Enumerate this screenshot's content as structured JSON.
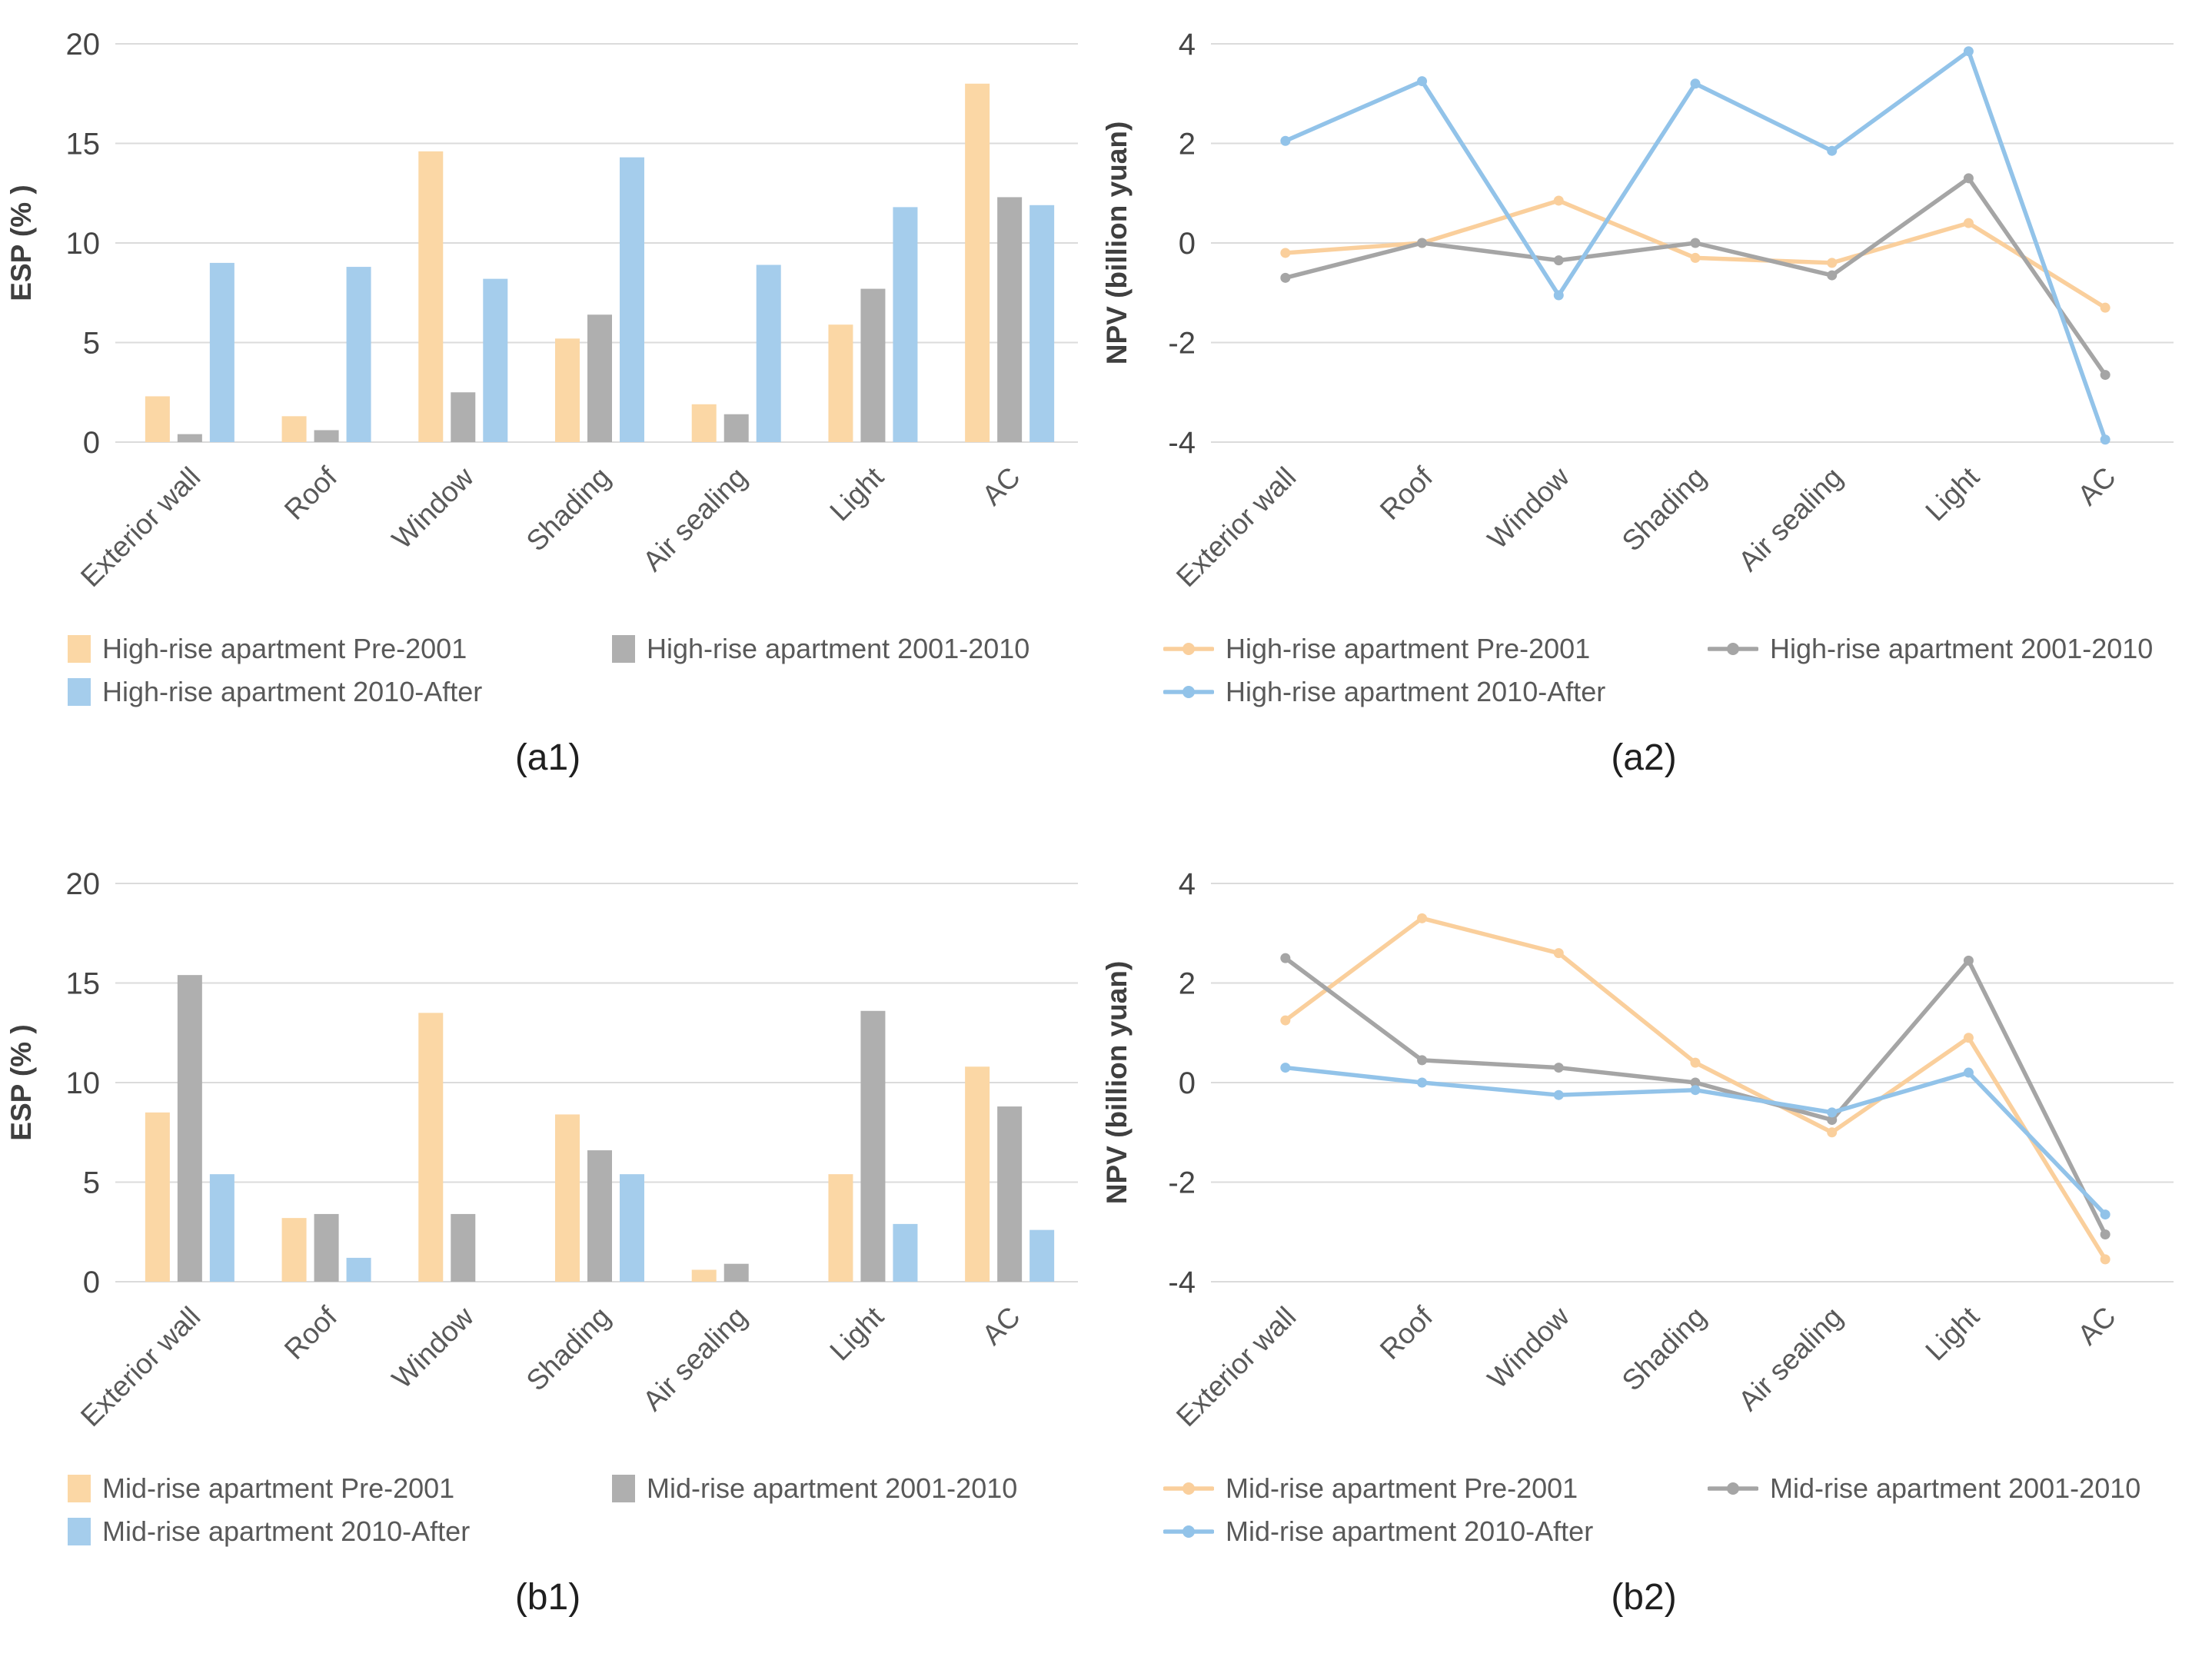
{
  "figure": {
    "categories": [
      "Exterior wall",
      "Roof",
      "Window",
      "Shading",
      "Air sealing",
      "Light",
      "AC"
    ],
    "styles": {
      "background": "#FFFFFF",
      "grid_color": "#DBDBDB",
      "tick_label_color": "#454545",
      "axis_title_color": "#3F3F3F",
      "category_label_color": "#595959",
      "legend_text_color": "#595959",
      "caption_color": "#1F1F1F",
      "orange_bar": "#FBD7A5",
      "gray_bar": "#AFAFAF",
      "blue_bar": "#A5CDEC",
      "orange_line": "#FACF9C",
      "gray_line": "#A5A5A5",
      "blue_line": "#92C3E9"
    },
    "panels": [
      {
        "id": "a1",
        "caption": "(a1)",
        "type": "bar",
        "y_label": "ESP (% )",
        "y_min": 0,
        "y_max": 20,
        "y_ticks": [
          0,
          5,
          10,
          15,
          20
        ],
        "series": [
          {
            "label": "High-rise apartment Pre-2001",
            "color": "#FBD7A5",
            "values": [
              2.3,
              1.3,
              14.6,
              5.2,
              1.9,
              5.9,
              18.0
            ]
          },
          {
            "label": "High-rise apartment 2001-2010",
            "color": "#AFAFAF",
            "values": [
              0.4,
              0.6,
              2.5,
              6.4,
              1.4,
              7.7,
              12.3
            ]
          },
          {
            "label": "High-rise apartment 2010-After",
            "color": "#A5CDEC",
            "values": [
              9.0,
              8.8,
              8.2,
              14.3,
              8.9,
              11.8,
              11.9
            ]
          }
        ]
      },
      {
        "id": "a2",
        "caption": "(a2)",
        "type": "line",
        "y_label": "NPV (billion yuan)",
        "y_min": -4,
        "y_max": 4,
        "y_ticks": [
          -4,
          -2,
          0,
          2,
          4
        ],
        "series": [
          {
            "label": "High-rise apartment Pre-2001",
            "color": "#FACF9C",
            "values": [
              -0.2,
              0.0,
              0.85,
              -0.3,
              -0.4,
              0.4,
              -1.3
            ]
          },
          {
            "label": "High-rise apartment 2001-2010",
            "color": "#A5A5A5",
            "values": [
              -0.7,
              0.0,
              -0.35,
              0.0,
              -0.65,
              1.3,
              -2.65
            ]
          },
          {
            "label": "High-rise apartment 2010-After",
            "color": "#92C3E9",
            "values": [
              2.05,
              3.25,
              -1.05,
              3.2,
              1.85,
              3.85,
              -3.95
            ]
          }
        ]
      },
      {
        "id": "b1",
        "caption": "(b1)",
        "type": "bar",
        "y_label": "ESP (% )",
        "y_min": 0,
        "y_max": 20,
        "y_ticks": [
          0,
          5,
          10,
          15,
          20
        ],
        "series": [
          {
            "label": "Mid-rise apartment Pre-2001",
            "color": "#FBD7A5",
            "values": [
              8.5,
              3.2,
              13.5,
              8.4,
              0.6,
              5.4,
              10.8
            ]
          },
          {
            "label": "Mid-rise apartment 2001-2010",
            "color": "#AFAFAF",
            "values": [
              15.4,
              3.4,
              3.4,
              6.6,
              0.9,
              13.6,
              8.8
            ]
          },
          {
            "label": "Mid-rise apartment 2010-After",
            "color": "#A5CDEC",
            "values": [
              5.4,
              1.2,
              0,
              5.4,
              0,
              2.9,
              2.6
            ]
          }
        ]
      },
      {
        "id": "b2",
        "caption": "(b2)",
        "type": "line",
        "y_label": "NPV (billion yuan)",
        "y_min": -4,
        "y_max": 4,
        "y_ticks": [
          -4,
          -2,
          0,
          2,
          4
        ],
        "series": [
          {
            "label": "Mid-rise apartment Pre-2001",
            "color": "#FACF9C",
            "values": [
              1.25,
              3.3,
              2.6,
              0.4,
              -1.0,
              0.9,
              -3.55
            ]
          },
          {
            "label": "Mid-rise apartment 2001-2010",
            "color": "#A5A5A5",
            "values": [
              2.5,
              0.45,
              0.3,
              0.0,
              -0.75,
              2.45,
              -3.05
            ]
          },
          {
            "label": "Mid-rise apartment 2010-After",
            "color": "#92C3E9",
            "values": [
              0.3,
              0.0,
              -0.25,
              -0.15,
              -0.6,
              0.2,
              -2.65
            ]
          }
        ]
      }
    ],
    "chart_data": [
      {
        "type": "bar",
        "title": "(a1)",
        "categories": [
          "Exterior wall",
          "Roof",
          "Window",
          "Shading",
          "Air sealing",
          "Light",
          "AC"
        ],
        "series": [
          {
            "name": "High-rise apartment Pre-2001",
            "values": [
              2.3,
              1.3,
              14.6,
              5.2,
              1.9,
              5.9,
              18.0
            ]
          },
          {
            "name": "High-rise apartment 2001-2010",
            "values": [
              0.4,
              0.6,
              2.5,
              6.4,
              1.4,
              7.7,
              12.3
            ]
          },
          {
            "name": "High-rise apartment 2010-After",
            "values": [
              9.0,
              8.8,
              8.2,
              14.3,
              8.9,
              11.8,
              11.9
            ]
          }
        ],
        "xlabel": "",
        "ylabel": "ESP (% )",
        "ylim": [
          0,
          20
        ],
        "grid": "horizontal",
        "legend_position": "bottom"
      },
      {
        "type": "line",
        "title": "(a2)",
        "categories": [
          "Exterior wall",
          "Roof",
          "Window",
          "Shading",
          "Air sealing",
          "Light",
          "AC"
        ],
        "series": [
          {
            "name": "High-rise apartment Pre-2001",
            "values": [
              -0.2,
              0.0,
              0.85,
              -0.3,
              -0.4,
              0.4,
              -1.3
            ]
          },
          {
            "name": "High-rise apartment 2001-2010",
            "values": [
              -0.7,
              0.0,
              -0.35,
              0.0,
              -0.65,
              1.3,
              -2.65
            ]
          },
          {
            "name": "High-rise apartment 2010-After",
            "values": [
              2.05,
              3.25,
              -1.05,
              3.2,
              1.85,
              3.85,
              -3.95
            ]
          }
        ],
        "xlabel": "",
        "ylabel": "NPV (billion yuan)",
        "ylim": [
          -4,
          4
        ],
        "grid": "horizontal",
        "legend_position": "bottom"
      },
      {
        "type": "bar",
        "title": "(b1)",
        "categories": [
          "Exterior wall",
          "Roof",
          "Window",
          "Shading",
          "Air sealing",
          "Light",
          "AC"
        ],
        "series": [
          {
            "name": "Mid-rise apartment Pre-2001",
            "values": [
              8.5,
              3.2,
              13.5,
              8.4,
              0.6,
              5.4,
              10.8
            ]
          },
          {
            "name": "Mid-rise apartment 2001-2010",
            "values": [
              15.4,
              3.4,
              3.4,
              6.6,
              0.9,
              13.6,
              8.8
            ]
          },
          {
            "name": "Mid-rise apartment 2010-After",
            "values": [
              5.4,
              1.2,
              0,
              5.4,
              0,
              2.9,
              2.6
            ]
          }
        ],
        "xlabel": "",
        "ylabel": "ESP (% )",
        "ylim": [
          0,
          20
        ],
        "grid": "horizontal",
        "legend_position": "bottom"
      },
      {
        "type": "line",
        "title": "(b2)",
        "categories": [
          "Exterior wall",
          "Roof",
          "Window",
          "Shading",
          "Air sealing",
          "Light",
          "AC"
        ],
        "series": [
          {
            "name": "Mid-rise apartment Pre-2001",
            "values": [
              1.25,
              3.3,
              2.6,
              0.4,
              -1.0,
              0.9,
              -3.55
            ]
          },
          {
            "name": "Mid-rise apartment 2001-2010",
            "values": [
              2.5,
              0.45,
              0.3,
              0.0,
              -0.75,
              2.45,
              -3.05
            ]
          },
          {
            "name": "Mid-rise apartment 2010-After",
            "values": [
              0.3,
              0.0,
              -0.25,
              -0.15,
              -0.6,
              0.2,
              -2.65
            ]
          }
        ],
        "xlabel": "",
        "ylabel": "NPV (billion yuan)",
        "ylim": [
          -4,
          4
        ],
        "grid": "horizontal",
        "legend_position": "bottom"
      }
    ]
  }
}
